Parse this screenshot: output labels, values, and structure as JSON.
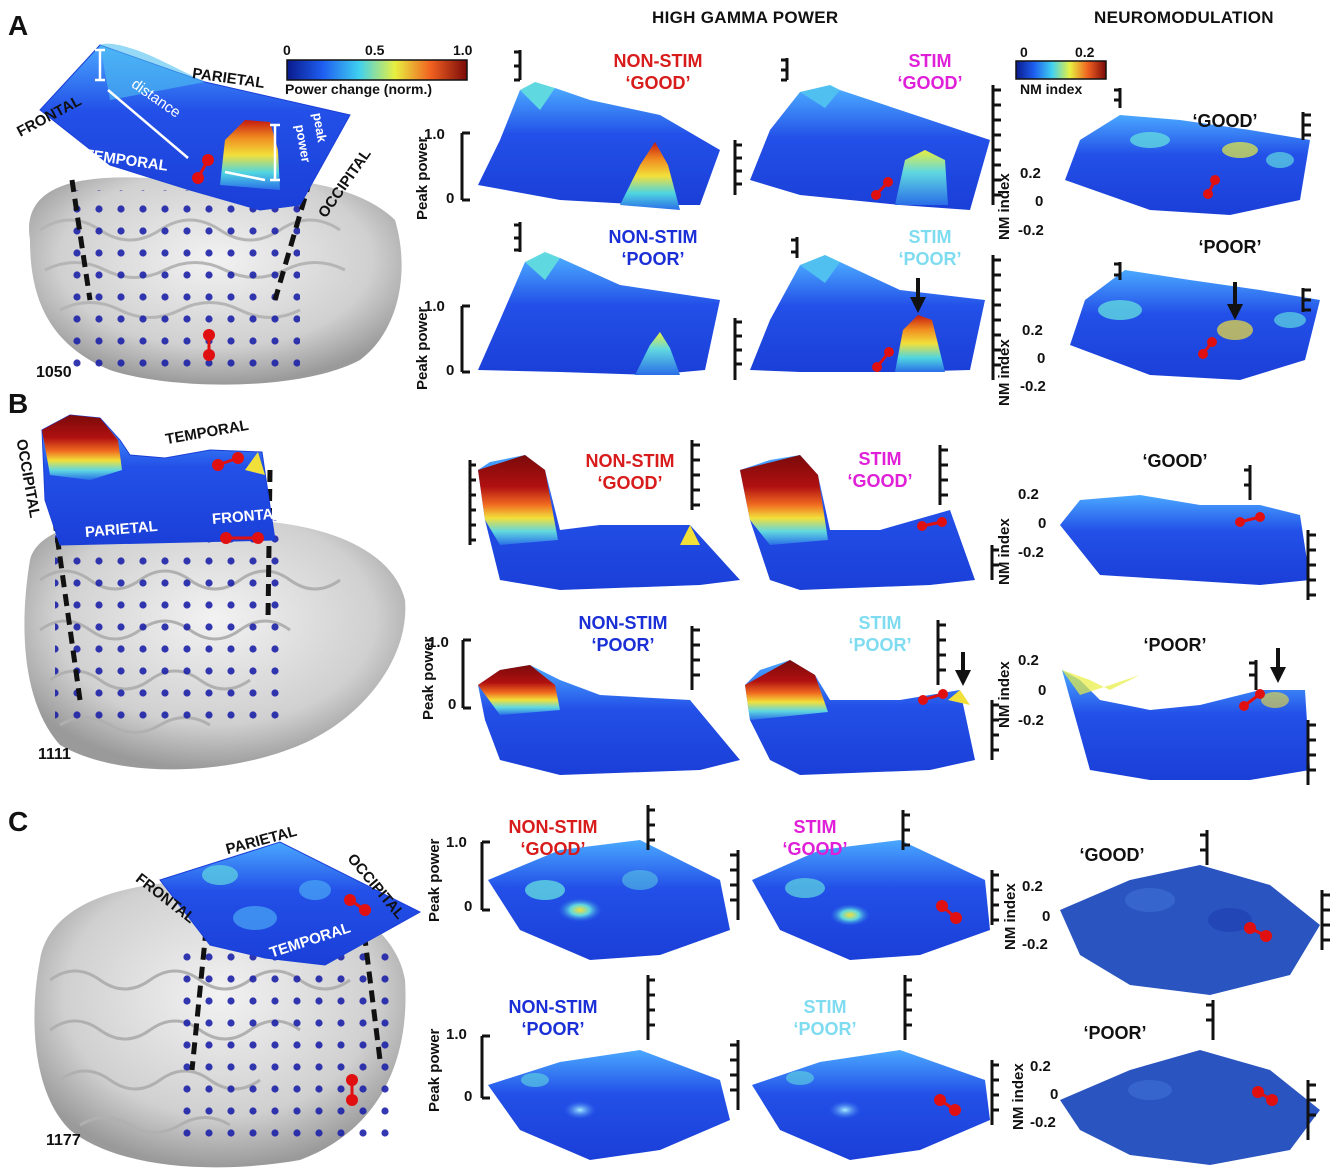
{
  "panels": [
    {
      "letter": "A",
      "patient": "1050"
    },
    {
      "letter": "B",
      "patient": "1111"
    },
    {
      "letter": "C",
      "patient": "1177"
    }
  ],
  "column_headers": {
    "hgp": "HIGH GAMMA POWER",
    "nm": "NEUROMODULATION"
  },
  "colorbars": {
    "power": {
      "ticks": [
        "0",
        "0.5",
        "1.0"
      ],
      "label": "Power change (norm.)"
    },
    "nm": {
      "ticks": [
        "0",
        "0.2"
      ],
      "label": "NM index"
    }
  },
  "regions": {
    "frontal": "FRONTAL",
    "parietal": "PARIETAL",
    "temporal": "TEMPORAL",
    "occipital": "OCCIPITAL",
    "occipital_b": "OCCIPITAL"
  },
  "schematic": {
    "distance": "distance",
    "peak": "peak",
    "power": "power"
  },
  "conditions": {
    "nonstim": "NON-STIM",
    "stim": "STIM",
    "good": "‘GOOD’",
    "poor": "‘POOR’"
  },
  "axes": {
    "peak_power": "Peak power",
    "nm_index": "NM index",
    "pp_ticks": [
      "1.0",
      "0"
    ],
    "nm_ticks": [
      "0.2",
      "0",
      "-0.2"
    ]
  },
  "colors": {
    "surface_low": "#1e3ee0",
    "surface_mid": "#39c6e8",
    "surface_hi": "#f2e03a",
    "surface_max": "#7a0a0a",
    "electrode": "#1c22a8",
    "stim_pair": "#e01010",
    "brain": "#d9d9d9"
  }
}
